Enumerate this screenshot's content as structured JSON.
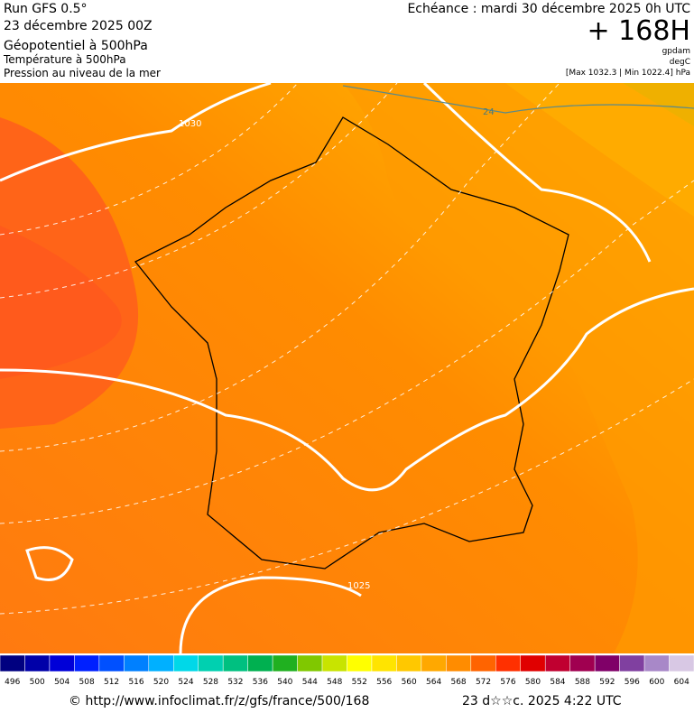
{
  "header": {
    "run": "Run GFS 0.5°",
    "date": "23 décembre 2025 00Z",
    "param1": "Géopotentiel à 500hPa",
    "param2": "Température à 500hPa",
    "param3": "Pression au niveau de la mer",
    "echeance": "Echéance : mardi 30 décembre 2025 0h UTC",
    "lead": "+ 168H",
    "unit1": "gpdam",
    "unit2": "degC",
    "range": "[Max 1032.3 | Min 1022.4] hPa"
  },
  "map": {
    "labels": [
      "1030",
      "24",
      "1025"
    ]
  },
  "colorbar": {
    "labels": [
      "496",
      "500",
      "504",
      "508",
      "512",
      "516",
      "520",
      "524",
      "528",
      "532",
      "536",
      "540",
      "544",
      "548",
      "552",
      "556",
      "560",
      "564",
      "568",
      "572",
      "576",
      "580",
      "584",
      "588",
      "592",
      "596",
      "600",
      "604"
    ],
    "colors": [
      "#000080",
      "#0000a8",
      "#0000d8",
      "#0020ff",
      "#0050ff",
      "#0080ff",
      "#00b0ff",
      "#00d8e8",
      "#00d0b0",
      "#00c080",
      "#00b050",
      "#20b020",
      "#80c800",
      "#c8e400",
      "#ffff00",
      "#ffe400",
      "#ffc800",
      "#ffa800",
      "#ff8c00",
      "#ff6400",
      "#ff3000",
      "#e00000",
      "#c00030",
      "#a00050",
      "#800068",
      "#8040a0",
      "#a888c8",
      "#d8c8e4"
    ]
  },
  "footer": {
    "source": "© http://www.infoclimat.fr/z/gfs/france/500/168",
    "timestamp": "23 d☆☆c. 2025  4:22 UTC"
  }
}
